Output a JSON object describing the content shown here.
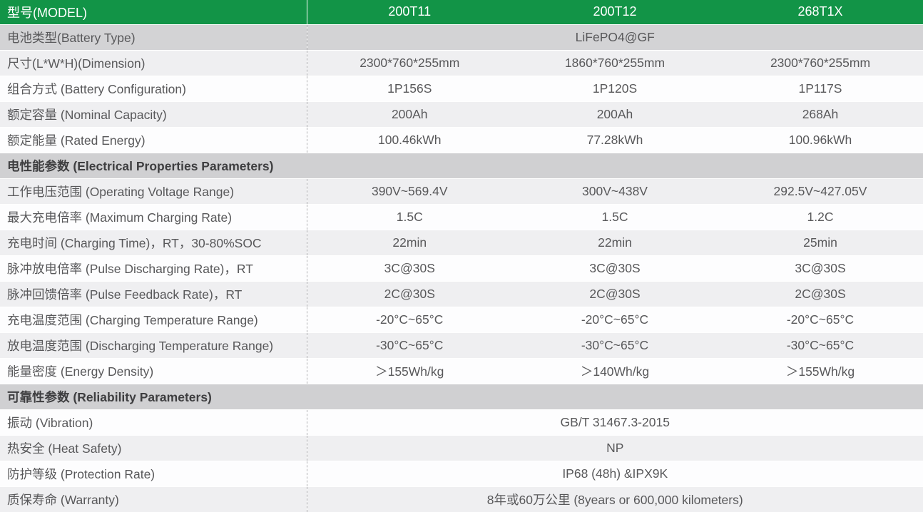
{
  "table": {
    "header": {
      "label": "型号(MODEL)",
      "models": [
        "200T11",
        "200T12",
        "268T1X"
      ]
    },
    "rows": [
      {
        "type": "span",
        "shade": "dark",
        "label": "电池类型(Battery Type)",
        "value": "LiFePO4@GF"
      },
      {
        "type": "data",
        "shade": "gray",
        "label": "尺寸(L*W*H)(Dimension)",
        "values": [
          "2300*760*255mm",
          "1860*760*255mm",
          "2300*760*255mm"
        ]
      },
      {
        "type": "data",
        "shade": "white",
        "label": "组合方式 (Battery Configuration)",
        "values": [
          "1P156S",
          "1P120S",
          "1P117S"
        ]
      },
      {
        "type": "data",
        "shade": "gray",
        "label": "额定容量 (Nominal Capacity)",
        "values": [
          "200Ah",
          "200Ah",
          "268Ah"
        ]
      },
      {
        "type": "data",
        "shade": "white",
        "label": "额定能量 (Rated Energy)",
        "values": [
          "100.46kWh",
          "77.28kWh",
          "100.96kWh"
        ]
      },
      {
        "type": "section",
        "label": "电性能参数 (Electrical Properties Parameters)"
      },
      {
        "type": "data",
        "shade": "gray",
        "label": "工作电压范围 (Operating Voltage Range)",
        "values": [
          "390V~569.4V",
          "300V~438V",
          "292.5V~427.05V"
        ]
      },
      {
        "type": "data",
        "shade": "white",
        "label": "最大充电倍率 (Maximum Charging Rate)",
        "values": [
          "1.5C",
          "1.5C",
          "1.2C"
        ]
      },
      {
        "type": "data",
        "shade": "gray",
        "label": "充电时间 (Charging Time)，RT，30-80%SOC",
        "values": [
          "22min",
          "22min",
          "25min"
        ]
      },
      {
        "type": "data",
        "shade": "white",
        "label": "脉冲放电倍率 (Pulse Discharging Rate)，RT",
        "values": [
          "3C@30S",
          "3C@30S",
          "3C@30S"
        ]
      },
      {
        "type": "data",
        "shade": "gray",
        "label": "脉冲回馈倍率 (Pulse Feedback Rate)，RT",
        "values": [
          "2C@30S",
          "2C@30S",
          "2C@30S"
        ]
      },
      {
        "type": "data",
        "shade": "white",
        "label": "充电温度范围 (Charging Temperature Range)",
        "values": [
          "-20°C~65°C",
          "-20°C~65°C",
          "-20°C~65°C"
        ]
      },
      {
        "type": "data",
        "shade": "gray",
        "label": "放电温度范围 (Discharging Temperature Range)",
        "values": [
          "-30°C~65°C",
          "-30°C~65°C",
          "-30°C~65°C"
        ]
      },
      {
        "type": "data",
        "shade": "white",
        "label": "能量密度 (Energy Density)",
        "values": [
          "＞155Wh/kg",
          "＞140Wh/kg",
          "＞155Wh/kg"
        ]
      },
      {
        "type": "section",
        "label": "可靠性参数 (Reliability Parameters)"
      },
      {
        "type": "span",
        "shade": "white",
        "label": "振动 (Vibration)",
        "value": "GB/T 31467.3-2015"
      },
      {
        "type": "span",
        "shade": "gray",
        "label": "热安全 (Heat Safety)",
        "value": "NP"
      },
      {
        "type": "span",
        "shade": "white",
        "label": "防护等级 (Protection Rate)",
        "value": "IP68 (48h) &IPX9K"
      },
      {
        "type": "span",
        "shade": "gray",
        "label": "质保寿命 (Warranty)",
        "value": "8年或60万公里 (8years or 600,000 kilometers)"
      }
    ]
  },
  "colors": {
    "green": "#129447",
    "header-text": "#ffffff",
    "section-bg": "#d0d0d2",
    "section-text": "#3e3e40",
    "dark-row": "#d3d3d5",
    "stripe-row": "#efeff1",
    "white-row": "#fdfdfe",
    "label-text": "#58585a",
    "dash": "#b0b0b2"
  }
}
